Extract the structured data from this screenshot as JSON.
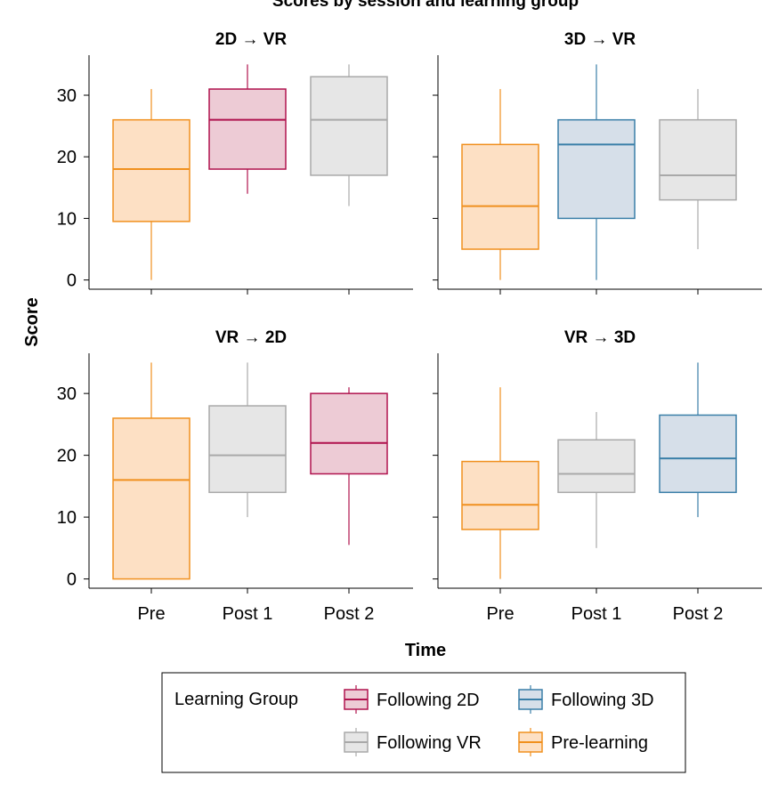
{
  "chart_data": {
    "type": "box",
    "title": "Scores by session and learning group",
    "xlabel": "Time",
    "ylabel": "Score",
    "categories": [
      "Pre",
      "Post 1",
      "Post 2"
    ],
    "y_ticks": [
      0,
      10,
      20,
      30
    ],
    "ylim": [
      -1.5,
      36.5
    ],
    "groups": {
      "Following 2D": {
        "stroke": "#b0134e",
        "fill": "#edcbd5"
      },
      "Following 3D": {
        "stroke": "#3a7fa8",
        "fill": "#d6dfe9"
      },
      "Following VR": {
        "stroke": "#a9a9a9",
        "fill": "#e6e6e6"
      },
      "Pre-learning": {
        "stroke": "#f0901e",
        "fill": "#fde0c4"
      }
    },
    "legend": {
      "title": "Learning Group",
      "placement": "bottom",
      "entries": [
        "Following 2D",
        "Following 3D",
        "Following VR",
        "Pre-learning"
      ]
    },
    "panels": [
      {
        "title": "2D → VR",
        "boxes": [
          {
            "category": "Pre",
            "group": "Pre-learning",
            "min": 0,
            "q1": 9.5,
            "median": 18,
            "q3": 26,
            "max": 31
          },
          {
            "category": "Post 1",
            "group": "Following 2D",
            "min": 14,
            "q1": 18,
            "median": 26,
            "q3": 31,
            "max": 35
          },
          {
            "category": "Post 2",
            "group": "Following VR",
            "min": 12,
            "q1": 17,
            "median": 26,
            "q3": 33,
            "max": 35
          }
        ]
      },
      {
        "title": "3D → VR",
        "boxes": [
          {
            "category": "Pre",
            "group": "Pre-learning",
            "min": 0,
            "q1": 5,
            "median": 12,
            "q3": 22,
            "max": 31
          },
          {
            "category": "Post 1",
            "group": "Following 3D",
            "min": 0,
            "q1": 10,
            "median": 22,
            "q3": 26,
            "max": 35
          },
          {
            "category": "Post 2",
            "group": "Following VR",
            "min": 5,
            "q1": 13,
            "median": 17,
            "q3": 26,
            "max": 31
          }
        ]
      },
      {
        "title": "VR → 2D",
        "boxes": [
          {
            "category": "Pre",
            "group": "Pre-learning",
            "min": 0,
            "q1": 0,
            "median": 16,
            "q3": 26,
            "max": 35
          },
          {
            "category": "Post 1",
            "group": "Following VR",
            "min": 10,
            "q1": 14,
            "median": 20,
            "q3": 28,
            "max": 35
          },
          {
            "category": "Post 2",
            "group": "Following 2D",
            "min": 5.5,
            "q1": 17,
            "median": 22,
            "q3": 30,
            "max": 31
          }
        ]
      },
      {
        "title": "VR → 3D",
        "boxes": [
          {
            "category": "Pre",
            "group": "Pre-learning",
            "min": 0,
            "q1": 8,
            "median": 12,
            "q3": 19,
            "max": 31
          },
          {
            "category": "Post 1",
            "group": "Following VR",
            "min": 5,
            "q1": 14,
            "median": 17,
            "q3": 22.5,
            "max": 27
          },
          {
            "category": "Post 2",
            "group": "Following 3D",
            "min": 10,
            "q1": 14,
            "median": 19.5,
            "q3": 26.5,
            "max": 35
          }
        ]
      }
    ]
  }
}
